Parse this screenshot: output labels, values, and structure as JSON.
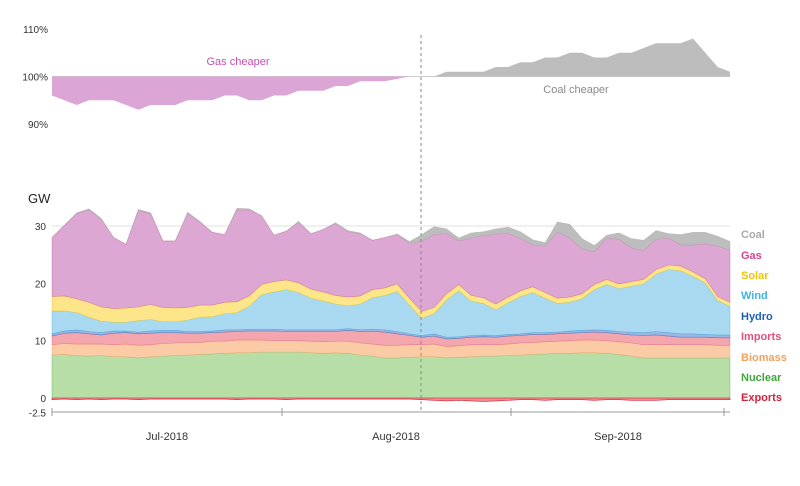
{
  "chart_data": [
    {
      "type": "area",
      "title": "",
      "xlabel": "",
      "ylabel": "",
      "x_start": "2018-06-23",
      "x_end": "2018-09-25",
      "ylim": [
        85,
        112
      ],
      "y_ticks": [
        "110%",
        "100%",
        "90%"
      ],
      "y_tick_values": [
        110,
        100,
        90
      ],
      "baseline": 100,
      "annotations": [
        "Gas cheaper",
        "Coal cheaper"
      ],
      "series": [
        {
          "values": [
            96,
            95,
            94,
            95,
            95,
            95,
            94,
            93,
            94,
            94,
            94,
            95,
            95,
            95,
            96,
            96,
            95,
            95,
            96,
            96,
            97,
            97,
            97,
            98,
            98,
            99,
            99,
            99,
            99.5,
            100,
            100,
            100,
            101,
            101,
            101,
            101,
            102,
            102,
            103,
            103,
            104,
            104,
            105,
            105,
            104,
            104,
            105,
            105,
            106,
            107,
            107,
            107,
            108,
            105,
            102,
            101
          ]
        }
      ],
      "colors": {
        "gas": "#dba6d6",
        "coal": "#bdbdbd",
        "gas_text": "#c64fb3",
        "coal_text": "#8a8a8a"
      }
    },
    {
      "type": "area",
      "title": "",
      "xlabel": "",
      "ylabel": "GW",
      "x_start": "2018-06-23",
      "x_end": "2018-09-25",
      "x_ticks": [
        "Jul-2018",
        "Aug-2018",
        "Sep-2018"
      ],
      "ylim": [
        -2.5,
        32
      ],
      "y_ticks": [
        "30",
        "20",
        "10",
        "0",
        "-2.5"
      ],
      "y_tick_values": [
        30,
        20,
        10,
        0,
        -2.5
      ],
      "stacked": true,
      "grid": true,
      "legend": [
        "Coal",
        "Gas",
        "Solar",
        "Wind",
        "Hydro",
        "Imports",
        "Biomass",
        "Nuclear",
        "Exports"
      ],
      "colors": {
        "Coal": "#a9a9a9",
        "Gas": "#d9438f",
        "Solar": "#f2c500",
        "Wind": "#3db5e6",
        "Hydro": "#1f5fb3",
        "Imports": "#e0507a",
        "Biomass": "#f5a15c",
        "Nuclear": "#3fa63f",
        "Exports": "#d61f3d",
        "Coal_fill": "#bdbdbd",
        "Gas_fill": "#dda7d4",
        "Solar_fill": "#fde68a",
        "Wind_fill": "#a9d9f0",
        "Hydro_fill": "#9bb6e3",
        "Imports_fill": "#f3a6ad",
        "Biomass_fill": "#fbcba5",
        "Nuclear_fill": "#b7dea6",
        "Exports_fill": "#ef8c8c"
      },
      "series": [
        {
          "name": "Nuclear",
          "values": [
            7.5,
            7.6,
            7.4,
            7.3,
            7.4,
            7.2,
            7.2,
            7.0,
            7.2,
            7.3,
            7.4,
            7.5,
            7.6,
            7.7,
            7.8,
            7.9,
            7.9,
            8.0,
            8.0,
            8.0,
            8.0,
            7.9,
            7.8,
            7.9,
            7.8,
            7.5,
            7.3,
            7.0,
            7.0,
            7.1,
            7.2,
            7.2,
            7.0,
            7.1,
            7.2,
            7.3,
            7.3,
            7.4,
            7.5,
            7.6,
            7.7,
            7.8,
            7.8,
            7.9,
            7.9,
            7.8,
            7.6,
            7.3,
            7.0,
            7.0,
            7.0,
            7.0,
            7.0,
            7.0,
            7.0,
            7.0
          ]
        },
        {
          "name": "Biomass",
          "values": [
            1.8,
            1.9,
            2.0,
            2.1,
            2.0,
            2.1,
            2.2,
            2.2,
            2.1,
            2.2,
            2.2,
            2.2,
            2.1,
            2.2,
            2.1,
            2.2,
            2.2,
            2.1,
            2.0,
            2.0,
            2.0,
            2.0,
            2.0,
            2.0,
            2.1,
            2.1,
            2.1,
            2.2,
            2.2,
            2.2,
            2.1,
            2.2,
            2.0,
            2.0,
            2.1,
            2.0,
            2.0,
            2.0,
            2.1,
            2.1,
            2.1,
            2.1,
            2.2,
            2.2,
            2.2,
            2.2,
            2.2,
            2.3,
            2.3,
            2.3,
            2.3,
            2.3,
            2.3,
            2.3,
            2.2,
            2.2
          ]
        },
        {
          "name": "Imports",
          "values": [
            1.5,
            1.8,
            2.0,
            1.8,
            1.6,
            2.0,
            2.0,
            2.0,
            2.0,
            1.9,
            1.8,
            1.6,
            1.6,
            1.5,
            1.6,
            1.5,
            1.6,
            1.6,
            1.7,
            1.6,
            1.6,
            1.7,
            1.8,
            1.7,
            1.9,
            2.0,
            2.2,
            2.3,
            2.0,
            1.6,
            1.3,
            1.4,
            1.3,
            1.3,
            1.3,
            1.4,
            1.3,
            1.4,
            1.3,
            1.4,
            1.3,
            1.3,
            1.3,
            1.3,
            1.4,
            1.4,
            1.4,
            1.4,
            1.6,
            1.7,
            1.5,
            1.3,
            1.3,
            1.3,
            1.3,
            1.3
          ]
        },
        {
          "name": "Hydro",
          "values": [
            0.4,
            0.4,
            0.5,
            0.4,
            0.4,
            0.4,
            0.3,
            0.3,
            0.4,
            0.4,
            0.4,
            0.3,
            0.3,
            0.3,
            0.4,
            0.3,
            0.3,
            0.3,
            0.3,
            0.3,
            0.3,
            0.3,
            0.3,
            0.3,
            0.3,
            0.3,
            0.4,
            0.4,
            0.4,
            0.3,
            0.3,
            0.4,
            0.3,
            0.3,
            0.3,
            0.3,
            0.3,
            0.3,
            0.3,
            0.3,
            0.3,
            0.3,
            0.4,
            0.4,
            0.4,
            0.4,
            0.4,
            0.5,
            0.5,
            0.6,
            0.6,
            0.6,
            0.6,
            0.5,
            0.5,
            0.5
          ]
        },
        {
          "name": "Wind",
          "values": [
            4.0,
            3.5,
            3.0,
            2.5,
            2.0,
            1.5,
            1.5,
            2.0,
            2.0,
            1.5,
            1.5,
            2.0,
            2.5,
            2.5,
            2.8,
            3.0,
            4.0,
            6.0,
            6.5,
            7.0,
            6.5,
            5.5,
            5.0,
            4.5,
            4.0,
            4.5,
            5.5,
            6.0,
            7.0,
            5.0,
            3.0,
            3.5,
            6.5,
            8.0,
            6.0,
            5.5,
            4.5,
            5.5,
            6.5,
            7.0,
            6.0,
            5.0,
            5.0,
            5.5,
            7.0,
            8.0,
            7.5,
            8.0,
            8.5,
            10.0,
            11.0,
            11.0,
            10.0,
            9.0,
            6.0,
            5.0
          ]
        },
        {
          "name": "Solar",
          "values": [
            2.5,
            2.6,
            2.4,
            2.6,
            2.5,
            2.4,
            2.5,
            2.4,
            2.6,
            2.5,
            2.4,
            2.2,
            2.1,
            2.0,
            2.0,
            1.9,
            1.8,
            1.8,
            1.8,
            1.7,
            1.7,
            1.6,
            1.6,
            1.5,
            1.5,
            1.4,
            1.4,
            1.3,
            1.3,
            1.2,
            1.2,
            1.1,
            1.1,
            1.1,
            1.0,
            1.0,
            1.0,
            1.0,
            1.0,
            1.0,
            1.0,
            0.9,
            0.9,
            0.9,
            0.9,
            0.9,
            0.8,
            0.8,
            0.8,
            0.8,
            0.8,
            0.8,
            0.8,
            0.7,
            0.7,
            0.7
          ]
        },
        {
          "name": "Gas",
          "values": [
            10.3,
            12.3,
            14.9,
            16.1,
            15.3,
            12.4,
            11.1,
            16.8,
            15.9,
            11.6,
            11.7,
            16.4,
            14.5,
            12.7,
            11.8,
            16.0,
            15.0,
            12.0,
            8.1,
            8.5,
            10.6,
            9.6,
            10.9,
            12.5,
            11.4,
            10.9,
            8.6,
            8.8,
            8.6,
            9.6,
            12.2,
            12.7,
            10.5,
            7.6,
            10.0,
            10.8,
            12.2,
            11.1,
            9.1,
            7.3,
            8.1,
            11.6,
            10.3,
            7.8,
            5.7,
            7.2,
            7.8,
            5.9,
            5.0,
            5.3,
            4.7,
            3.7,
            4.7,
            6.1,
            8.8,
            9.1
          ]
        },
        {
          "name": "Coal",
          "values": [
            0.0,
            0.0,
            0.1,
            0.2,
            0.1,
            0.0,
            0.0,
            0.2,
            0.1,
            0.0,
            0.0,
            0.2,
            0.1,
            0.0,
            0.0,
            0.3,
            0.2,
            0.0,
            0.0,
            0.0,
            0.1,
            0.1,
            0.0,
            0.2,
            0.2,
            0.1,
            0.0,
            0.0,
            0.1,
            0.3,
            1.2,
            1.4,
            0.8,
            0.5,
            0.9,
            0.7,
            0.9,
            1.1,
            1.2,
            0.9,
            0.6,
            1.7,
            2.4,
            1.8,
            1.1,
            0.5,
            1.1,
            1.6,
            1.8,
            1.5,
            0.8,
            1.8,
            2.2,
            2.0,
            1.7,
            1.5
          ]
        },
        {
          "name": "Exports",
          "values": [
            -0.3,
            -0.2,
            -0.3,
            -0.2,
            -0.3,
            -0.2,
            -0.2,
            -0.3,
            -0.2,
            -0.2,
            -0.2,
            -0.2,
            -0.2,
            -0.2,
            -0.2,
            -0.3,
            -0.2,
            -0.2,
            -0.2,
            -0.3,
            -0.2,
            -0.2,
            -0.2,
            -0.2,
            -0.2,
            -0.2,
            -0.2,
            -0.2,
            -0.2,
            -0.2,
            -0.3,
            -0.4,
            -0.5,
            -0.4,
            -0.5,
            -0.6,
            -0.5,
            -0.4,
            -0.3,
            -0.3,
            -0.4,
            -0.3,
            -0.3,
            -0.3,
            -0.4,
            -0.3,
            -0.3,
            -0.4,
            -0.4,
            -0.4,
            -0.3,
            -0.3,
            -0.3,
            -0.3,
            -0.3,
            -0.3
          ]
        }
      ]
    }
  ]
}
